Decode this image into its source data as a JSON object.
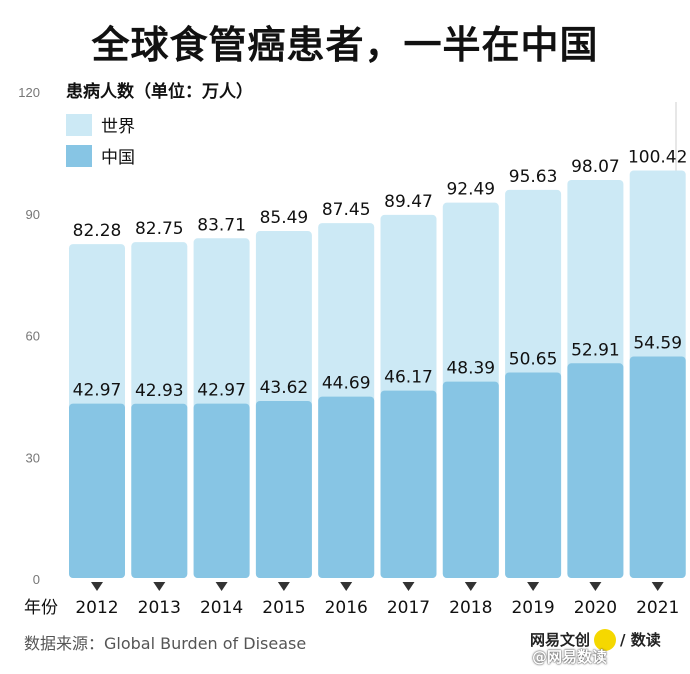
{
  "title": "全球食管癌患者，一半在中国",
  "chart_data": {
    "type": "bar",
    "unit_label": "患病人数（单位：万人）",
    "x_prefix_label": "年份",
    "categories": [
      "2012",
      "2013",
      "2014",
      "2015",
      "2016",
      "2017",
      "2018",
      "2019",
      "2020",
      "2021"
    ],
    "series": [
      {
        "name": "世界",
        "color": "#cce9f5",
        "values": [
          82.28,
          82.75,
          83.71,
          85.49,
          87.45,
          89.47,
          92.49,
          95.63,
          98.07,
          100.42
        ]
      },
      {
        "name": "中国",
        "color": "#87c5e4",
        "values": [
          42.97,
          42.93,
          42.97,
          43.62,
          44.69,
          46.17,
          48.39,
          50.65,
          52.91,
          54.59
        ]
      }
    ],
    "ylim": [
      0,
      120
    ],
    "yticks": [
      0,
      30,
      60,
      90,
      120
    ]
  },
  "source": "数据来源：Global Burden of Disease",
  "brand": {
    "left": "网易文创",
    "badge": "NetEase",
    "right": "/ 数读"
  },
  "watermark": "@网易数读"
}
